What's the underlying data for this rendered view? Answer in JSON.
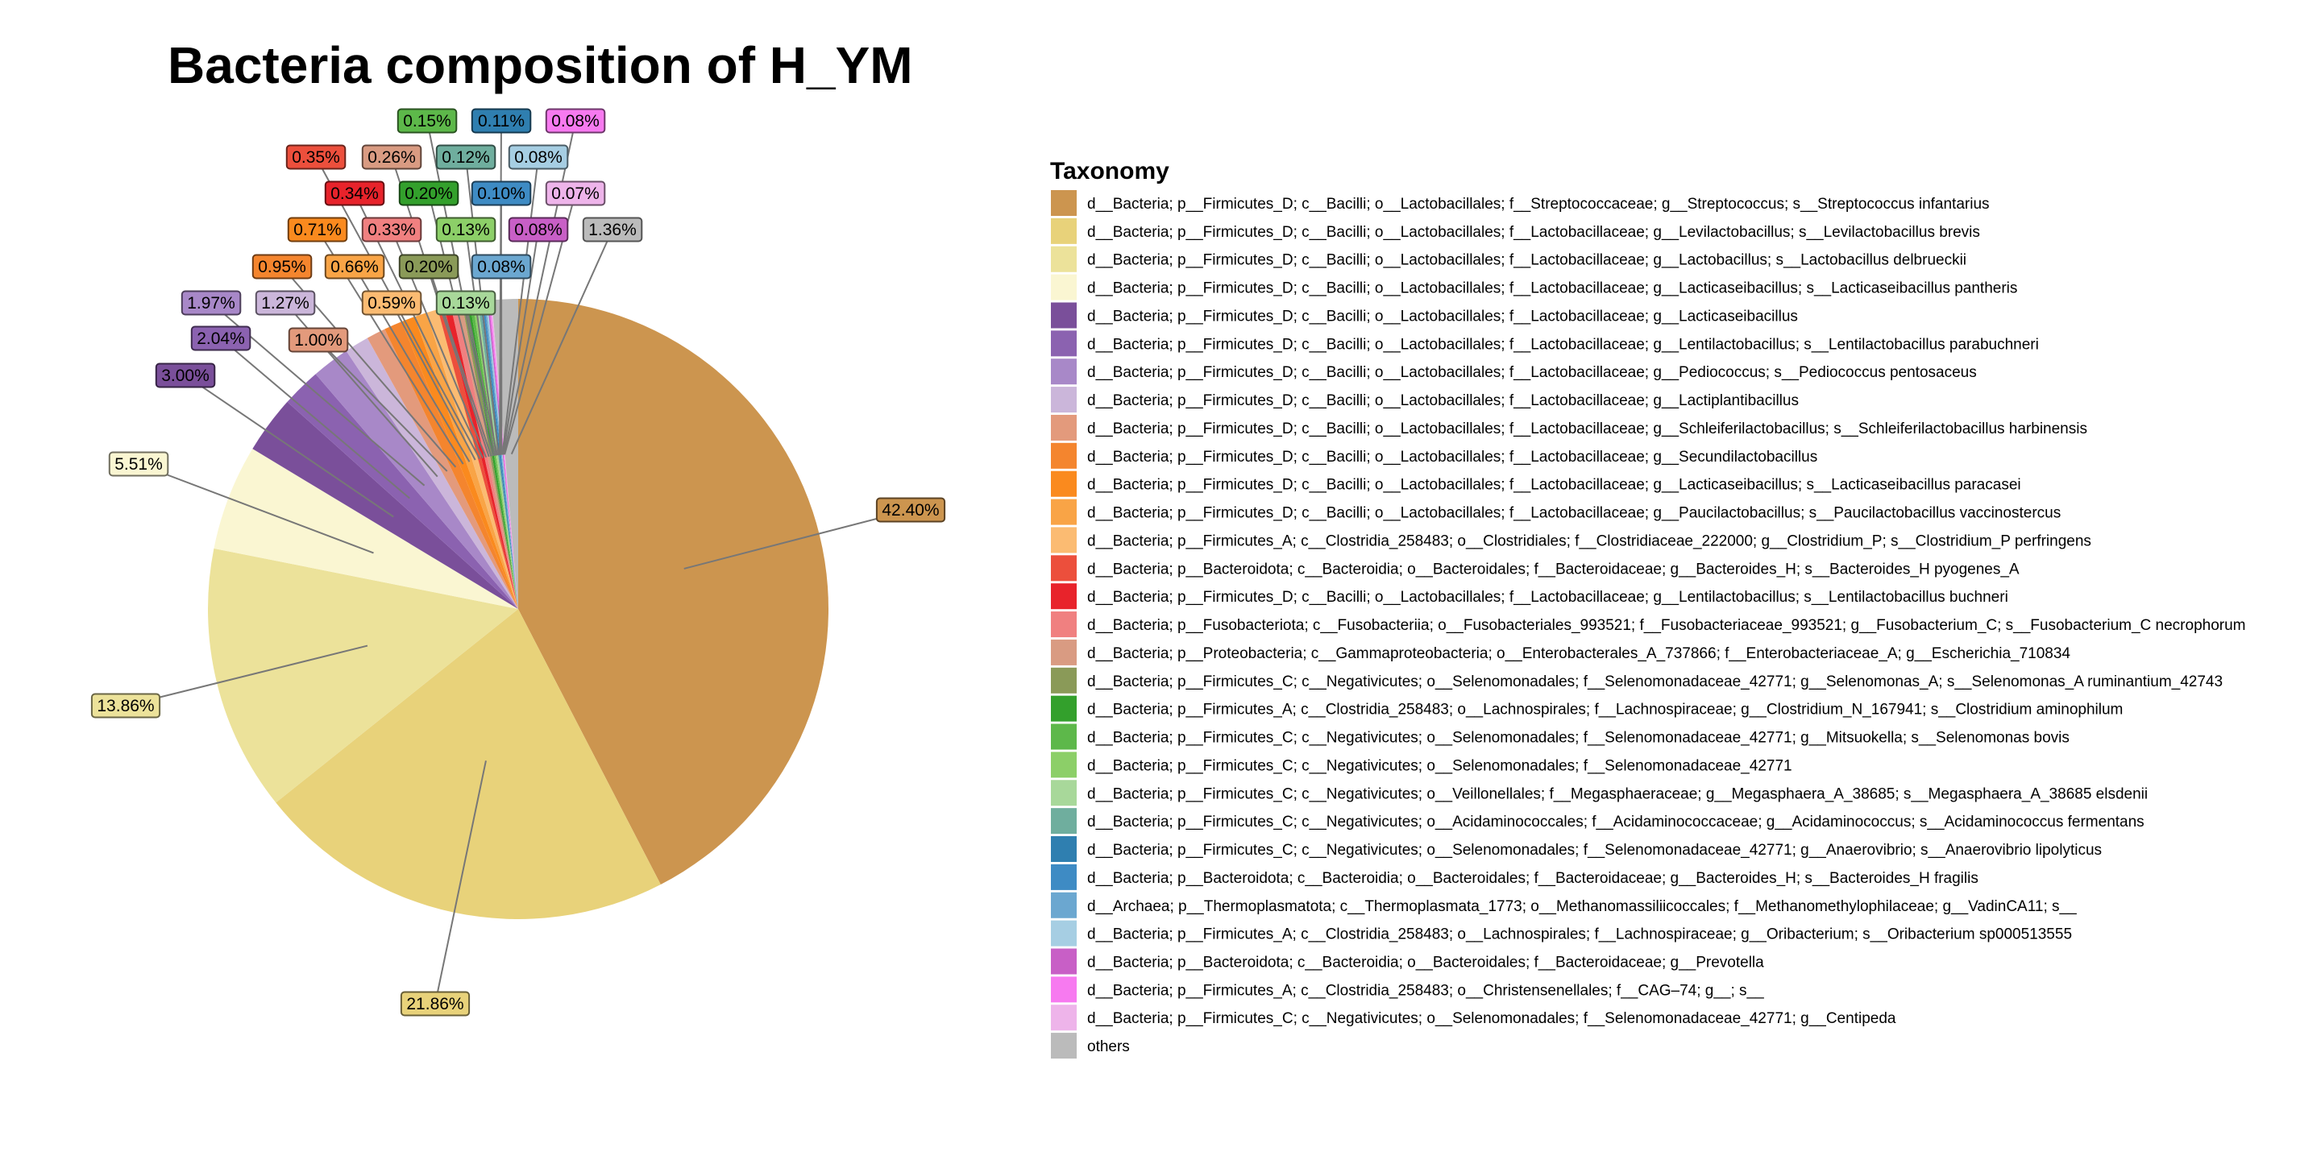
{
  "chart_data": {
    "type": "pie",
    "title": "Bacteria composition of H_YM",
    "legend_title": "Taxonomy",
    "legend_position": "right",
    "slices": [
      {
        "label": "d__Bacteria; p__Firmicutes_D; c__Bacilli; o__Lactobacillales; f__Streptococcaceae; g__Streptococcus; s__Streptococcus infantarius",
        "value": 42.4,
        "display": "42.40%",
        "color": "#CC954F"
      },
      {
        "label": "d__Bacteria; p__Firmicutes_D; c__Bacilli; o__Lactobacillales; f__Lactobacillaceae; g__Levilactobacillus; s__Levilactobacillus brevis",
        "value": 21.86,
        "display": "21.86%",
        "color": "#E8D27A"
      },
      {
        "label": "d__Bacteria; p__Firmicutes_D; c__Bacilli; o__Lactobacillales; f__Lactobacillaceae; g__Lactobacillus; s__Lactobacillus delbrueckii",
        "value": 13.86,
        "display": "13.86%",
        "color": "#ECE29A"
      },
      {
        "label": "d__Bacteria; p__Firmicutes_D; c__Bacilli; o__Lactobacillales; f__Lactobacillaceae; g__Lacticaseibacillus; s__Lacticaseibacillus pantheris",
        "value": 5.51,
        "display": "5.51%",
        "color": "#FAF6D2"
      },
      {
        "label": "d__Bacteria; p__Firmicutes_D; c__Bacilli; o__Lactobacillales; f__Lactobacillaceae; g__Lacticaseibacillus",
        "value": 3.0,
        "display": "3.00%",
        "color": "#7A4F9A"
      },
      {
        "label": "d__Bacteria; p__Firmicutes_D; c__Bacilli; o__Lactobacillales; f__Lactobacillaceae; g__Lentilactobacillus; s__Lentilactobacillus parabuchneri",
        "value": 2.04,
        "display": "2.04%",
        "color": "#8B62B0"
      },
      {
        "label": "d__Bacteria; p__Firmicutes_D; c__Bacilli; o__Lactobacillales; f__Lactobacillaceae; g__Pediococcus; s__Pediococcus pentosaceus",
        "value": 1.97,
        "display": "1.97%",
        "color": "#A888C8"
      },
      {
        "label": "d__Bacteria; p__Firmicutes_D; c__Bacilli; o__Lactobacillales; f__Lactobacillaceae; g__Lactiplantibacillus",
        "value": 1.27,
        "display": "1.27%",
        "color": "#CBB6DA"
      },
      {
        "label": "d__Bacteria; p__Firmicutes_D; c__Bacilli; o__Lactobacillales; f__Lactobacillaceae; g__Schleiferilactobacillus; s__Schleiferilactobacillus harbinensis",
        "value": 1.0,
        "display": "1.00%",
        "color": "#E39A7C"
      },
      {
        "label": "d__Bacteria; p__Firmicutes_D; c__Bacilli; o__Lactobacillales; f__Lactobacillaceae; g__Secundilactobacillus",
        "value": 0.95,
        "display": "0.95%",
        "color": "#F4852E"
      },
      {
        "label": "d__Bacteria; p__Firmicutes_D; c__Bacilli; o__Lactobacillales; f__Lactobacillaceae; g__Lacticaseibacillus; s__Lacticaseibacillus paracasei",
        "value": 0.71,
        "display": "0.71%",
        "color": "#FA8A1E"
      },
      {
        "label": "d__Bacteria; p__Firmicutes_D; c__Bacilli; o__Lactobacillales; f__Lactobacillaceae; g__Paucilactobacillus; s__Paucilactobacillus vaccinostercus",
        "value": 0.66,
        "display": "0.66%",
        "color": "#F9A446"
      },
      {
        "label": "d__Bacteria; p__Firmicutes_A; c__Clostridia_258483; o__Clostridiales; f__Clostridiaceae_222000; g__Clostridium_P; s__Clostridium_P perfringens",
        "value": 0.59,
        "display": "0.59%",
        "color": "#FBBB72"
      },
      {
        "label": "d__Bacteria; p__Bacteroidota; c__Bacteroidia; o__Bacteroidales; f__Bacteroidaceae; g__Bacteroides_H; s__Bacteroides_H pyogenes_A",
        "value": 0.35,
        "display": "0.35%",
        "color": "#EC4F3C"
      },
      {
        "label": "d__Bacteria; p__Firmicutes_D; c__Bacilli; o__Lactobacillales; f__Lactobacillaceae; g__Lentilactobacillus; s__Lentilactobacillus buchneri",
        "value": 0.34,
        "display": "0.34%",
        "color": "#E8232B"
      },
      {
        "label": "d__Bacteria; p__Fusobacteriota; c__Fusobacteriia; o__Fusobacteriales_993521; f__Fusobacteriaceae_993521; g__Fusobacterium_C; s__Fusobacterium_C necrophorum",
        "value": 0.33,
        "display": "0.33%",
        "color": "#F08080"
      },
      {
        "label": "d__Bacteria; p__Proteobacteria; c__Gammaproteobacteria; o__Enterobacterales_A_737866; f__Enterobacteriaceae_A; g__Escherichia_710834",
        "value": 0.26,
        "display": "0.26%",
        "color": "#D99B82"
      },
      {
        "label": "d__Bacteria; p__Firmicutes_C; c__Negativicutes; o__Selenomonadales; f__Selenomonadaceae_42771; g__Selenomonas_A; s__Selenomonas_A ruminantium_42743",
        "value": 0.2,
        "display": "0.20%",
        "color": "#8A9A58"
      },
      {
        "label": "d__Bacteria; p__Firmicutes_A; c__Clostridia_258483; o__Lachnospirales; f__Lachnospiraceae; g__Clostridium_N_167941; s__Clostridium aminophilum",
        "value": 0.2,
        "display": "0.20%",
        "color": "#33A02C"
      },
      {
        "label": "d__Bacteria; p__Firmicutes_C; c__Negativicutes; o__Selenomonadales; f__Selenomonadaceae_42771; g__Mitsuokella; s__Selenomonas bovis",
        "value": 0.15,
        "display": "0.15%",
        "color": "#5DB84A"
      },
      {
        "label": "d__Bacteria; p__Firmicutes_C; c__Negativicutes; o__Selenomonadales; f__Selenomonadaceae_42771",
        "value": 0.13,
        "display": "0.13%",
        "color": "#8CCF68"
      },
      {
        "label": "d__Bacteria; p__Firmicutes_C; c__Negativicutes; o__Veillonellales; f__Megasphaeraceae; g__Megasphaera_A_38685; s__Megasphaera_A_38685 elsdenii",
        "value": 0.13,
        "display": "0.13%",
        "color": "#A8D89A"
      },
      {
        "label": "d__Bacteria; p__Firmicutes_C; c__Negativicutes; o__Acidaminococcales; f__Acidaminococcaceae; g__Acidaminococcus; s__Acidaminococcus fermentans",
        "value": 0.12,
        "display": "0.12%",
        "color": "#6FAE9E"
      },
      {
        "label": "d__Bacteria; p__Firmicutes_C; c__Negativicutes; o__Selenomonadales; f__Selenomonadaceae_42771; g__Anaerovibrio; s__Anaerovibrio lipolyticus",
        "value": 0.11,
        "display": "0.11%",
        "color": "#2F7FB0"
      },
      {
        "label": "d__Bacteria; p__Bacteroidota; c__Bacteroidia; o__Bacteroidales; f__Bacteroidaceae; g__Bacteroides_H; s__Bacteroides_H fragilis",
        "value": 0.1,
        "display": "0.10%",
        "color": "#3E8BC4"
      },
      {
        "label": "d__Archaea; p__Thermoplasmatota; c__Thermoplasmata_1773; o__Methanomassiliicoccales; f__Methanomethylophilaceae; g__VadinCA11; s__",
        "value": 0.08,
        "display": "0.08%",
        "color": "#6BA7D0"
      },
      {
        "label": "d__Bacteria; p__Firmicutes_A; c__Clostridia_258483; o__Lachnospirales; f__Lachnospiraceae; g__Oribacterium; s__Oribacterium sp000513555",
        "value": 0.08,
        "display": "0.08%",
        "color": "#A6CEE3"
      },
      {
        "label": "d__Bacteria; p__Bacteroidota; c__Bacteroidia; o__Bacteroidales; f__Bacteroidaceae; g__Prevotella",
        "value": 0.08,
        "display": "0.08%",
        "color": "#C85FC6"
      },
      {
        "label": "d__Bacteria; p__Firmicutes_A; c__Clostridia_258483; o__Christensenellales; f__CAG–74; g__; s__",
        "value": 0.08,
        "display": "0.08%",
        "color": "#F77AF0"
      },
      {
        "label": "d__Bacteria; p__Firmicutes_C; c__Negativicutes; o__Selenomonadales; f__Selenomonadaceae_42771; g__Centipeda",
        "value": 0.07,
        "display": "0.07%",
        "color": "#EEB4EA"
      },
      {
        "label": "others",
        "value": 1.36,
        "display": "1.36%",
        "color": "#BBBBBB"
      }
    ]
  }
}
